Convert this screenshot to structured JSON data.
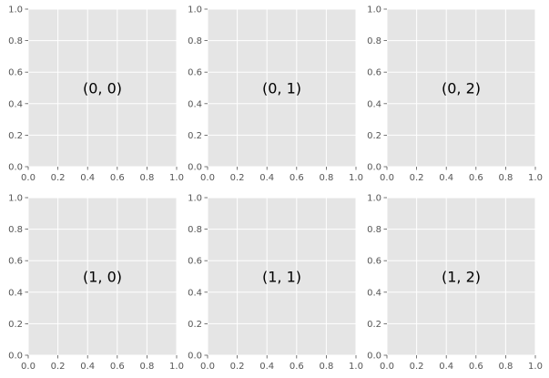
{
  "chart_data": [
    {
      "type": "scatter",
      "row": 0,
      "col": 0,
      "annotation": "(0, 0)",
      "xlim": [
        0,
        1
      ],
      "ylim": [
        0,
        1
      ],
      "xticks": [
        "0.0",
        "0.2",
        "0.4",
        "0.6",
        "0.8",
        "1.0"
      ],
      "yticks": [
        "0.0",
        "0.2",
        "0.4",
        "0.6",
        "0.8",
        "1.0"
      ],
      "grid": true
    },
    {
      "type": "scatter",
      "row": 0,
      "col": 1,
      "annotation": "(0, 1)",
      "xlim": [
        0,
        1
      ],
      "ylim": [
        0,
        1
      ],
      "xticks": [
        "0.0",
        "0.2",
        "0.4",
        "0.6",
        "0.8",
        "1.0"
      ],
      "yticks": [
        "0.0",
        "0.2",
        "0.4",
        "0.6",
        "0.8",
        "1.0"
      ],
      "grid": true
    },
    {
      "type": "scatter",
      "row": 0,
      "col": 2,
      "annotation": "(0, 2)",
      "xlim": [
        0,
        1
      ],
      "ylim": [
        0,
        1
      ],
      "xticks": [
        "0.0",
        "0.2",
        "0.4",
        "0.6",
        "0.8",
        "1.0"
      ],
      "yticks": [
        "0.0",
        "0.2",
        "0.4",
        "0.6",
        "0.8",
        "1.0"
      ],
      "grid": true
    },
    {
      "type": "scatter",
      "row": 1,
      "col": 0,
      "annotation": "(1, 0)",
      "xlim": [
        0,
        1
      ],
      "ylim": [
        0,
        1
      ],
      "xticks": [
        "0.0",
        "0.2",
        "0.4",
        "0.6",
        "0.8",
        "1.0"
      ],
      "yticks": [
        "0.0",
        "0.2",
        "0.4",
        "0.6",
        "0.8",
        "1.0"
      ],
      "grid": true
    },
    {
      "type": "scatter",
      "row": 1,
      "col": 1,
      "annotation": "(1, 1)",
      "xlim": [
        0,
        1
      ],
      "ylim": [
        0,
        1
      ],
      "xticks": [
        "0.0",
        "0.2",
        "0.4",
        "0.6",
        "0.8",
        "1.0"
      ],
      "yticks": [
        "0.0",
        "0.2",
        "0.4",
        "0.6",
        "0.8",
        "1.0"
      ],
      "grid": true
    },
    {
      "type": "scatter",
      "row": 1,
      "col": 2,
      "annotation": "(1, 2)",
      "xlim": [
        0,
        1
      ],
      "ylim": [
        0,
        1
      ],
      "xticks": [
        "0.0",
        "0.2",
        "0.4",
        "0.6",
        "0.8",
        "1.0"
      ],
      "yticks": [
        "0.0",
        "0.2",
        "0.4",
        "0.6",
        "0.8",
        "1.0"
      ],
      "grid": true
    }
  ],
  "colors": {
    "axes_background": "#e5e5e5",
    "grid": "#ffffff",
    "tick_label": "#555555",
    "tick_mark": "#555555",
    "annotation": "#000000"
  }
}
